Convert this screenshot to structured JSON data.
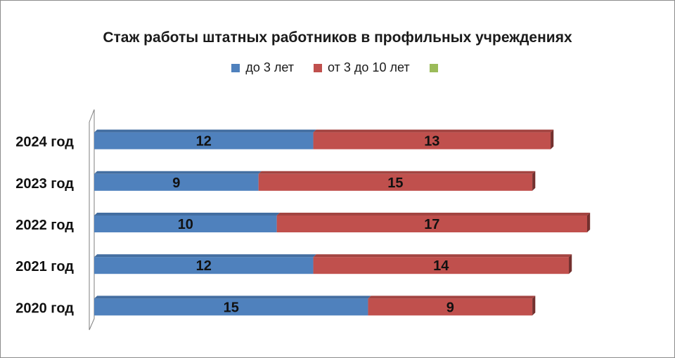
{
  "chart_data": {
    "type": "bar",
    "orientation": "horizontal",
    "stacked": true,
    "title": "Стаж работы  штатных работников  в профильных учреждениях",
    "xlabel": "",
    "ylabel": "",
    "categories": [
      "2020 год",
      "2021 год",
      "2022 год",
      "2023 год",
      "2024 год"
    ],
    "series": [
      {
        "name": "до  3 лет",
        "color": "#4f81bd",
        "values": [
          15,
          12,
          10,
          9,
          12
        ]
      },
      {
        "name": "от 3 до 10 лет",
        "color": "#c0504d",
        "values": [
          9,
          14,
          17,
          15,
          13
        ]
      },
      {
        "name": "",
        "color": "#9bbb59",
        "values": [
          0,
          0,
          0,
          0,
          0
        ]
      }
    ],
    "xlim": [
      0,
      27
    ],
    "grid": false,
    "legend_position": "top",
    "data_labels": true
  }
}
